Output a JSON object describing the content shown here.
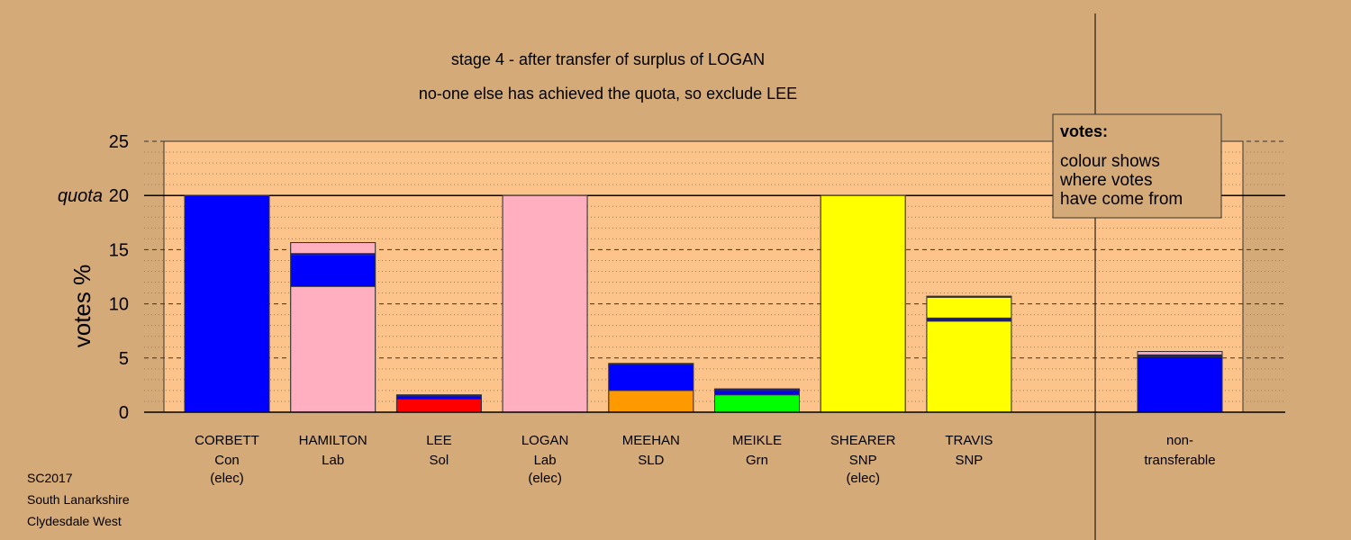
{
  "colors": {
    "background": "#d4aa78",
    "plot_area": "#fcc48a",
    "Con": "#0000ff",
    "Lab": "#ffafc0",
    "Sol": "#ff0000",
    "SLD": "#ff9900",
    "Grn": "#00ff00",
    "SNP": "#ffff00",
    "other": "#1a1a80"
  },
  "footer": {
    "line1": "SC2017",
    "line2": "South Lanarkshire",
    "line3": "Clydesdale West"
  },
  "legend": {
    "title": "votes:",
    "line1": "colour shows",
    "line2": "where votes",
    "line3": "have come from"
  },
  "chart_data": {
    "type": "bar",
    "stacked": true,
    "title": "stage 4 - after transfer of surplus of LOGAN",
    "subtitle": "no-one else has achieved the quota, so exclude LEE",
    "ylabel": "votes %",
    "xlabel": "",
    "ylim": [
      0,
      25
    ],
    "yticks": [
      0,
      5,
      10,
      15,
      20,
      25
    ],
    "quota": 20,
    "quota_label": "quota",
    "grid": true,
    "legend_position": "top-right",
    "candidates": [
      {
        "name": "CORBETT",
        "party": "Con",
        "note": "(elec)",
        "segments": [
          {
            "from": "Con",
            "value": 20.0
          }
        ]
      },
      {
        "name": "HAMILTON",
        "party": "Lab",
        "note": "",
        "segments": [
          {
            "from": "Lab",
            "value": 11.6
          },
          {
            "from": "Con",
            "value": 2.9
          },
          {
            "from": "other",
            "value": 0.15
          },
          {
            "from": "Lab",
            "value": 1.0
          }
        ]
      },
      {
        "name": "LEE",
        "party": "Sol",
        "note": "",
        "segments": [
          {
            "from": "Sol",
            "value": 1.2
          },
          {
            "from": "Con",
            "value": 0.3
          },
          {
            "from": "other",
            "value": 0.1
          }
        ]
      },
      {
        "name": "LOGAN",
        "party": "Lab",
        "note": "(elec)",
        "segments": [
          {
            "from": "Lab",
            "value": 20.0
          }
        ]
      },
      {
        "name": "MEEHAN",
        "party": "SLD",
        "note": "",
        "segments": [
          {
            "from": "SLD",
            "value": 2.0
          },
          {
            "from": "Con",
            "value": 2.4
          },
          {
            "from": "other",
            "value": 0.1
          }
        ]
      },
      {
        "name": "MEIKLE",
        "party": "Grn",
        "note": "",
        "segments": [
          {
            "from": "Grn",
            "value": 1.6
          },
          {
            "from": "Con",
            "value": 0.4
          },
          {
            "from": "other",
            "value": 0.15
          }
        ]
      },
      {
        "name": "SHEARER",
        "party": "SNP",
        "note": "(elec)",
        "segments": [
          {
            "from": "SNP",
            "value": 20.0
          }
        ]
      },
      {
        "name": "TRAVIS",
        "party": "SNP",
        "note": "",
        "segments": [
          {
            "from": "SNP",
            "value": 8.4
          },
          {
            "from": "other",
            "value": 0.3
          },
          {
            "from": "SNP",
            "value": 1.9
          },
          {
            "from": "other",
            "value": 0.1
          }
        ]
      }
    ],
    "nontransferable": {
      "label1": "non-",
      "label2": "transferable",
      "segments": [
        {
          "from": "Con",
          "value": 5.1
        },
        {
          "from": "other",
          "value": 0.2
        },
        {
          "from": "Lab",
          "value": 0.3
        }
      ]
    }
  }
}
